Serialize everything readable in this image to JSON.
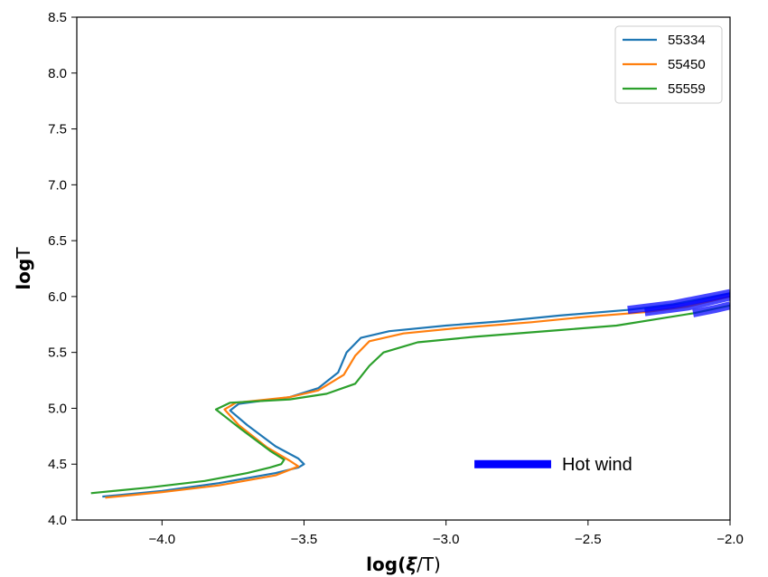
{
  "chart_data": {
    "type": "line",
    "xlabel_main": "log(",
    "xlabel_xi": "ξ",
    "xlabel_tail": "/T)",
    "ylabel_main": "log",
    "ylabel_tail": "T",
    "xlim": [
      -4.3,
      -2.0
    ],
    "ylim": [
      4.0,
      8.5
    ],
    "xticks": [
      -4.0,
      -3.5,
      -3.0,
      -2.5,
      -2.0
    ],
    "xtick_labels": [
      "−4.0",
      "−3.5",
      "−3.0",
      "−2.5",
      "−2.0"
    ],
    "yticks": [
      4.0,
      4.5,
      5.0,
      5.5,
      6.0,
      6.5,
      7.0,
      7.5,
      8.0,
      8.5
    ],
    "ytick_labels": [
      "4.0",
      "4.5",
      "5.0",
      "5.5",
      "6.0",
      "6.5",
      "7.0",
      "7.5",
      "8.0",
      "8.5"
    ],
    "grid": false,
    "legend_position": "top-right",
    "series": [
      {
        "name": "55334",
        "color": "#1f77b4",
        "points": [
          [
            -4.21,
            4.21
          ],
          [
            -4.0,
            4.26
          ],
          [
            -3.8,
            4.33
          ],
          [
            -3.6,
            4.42
          ],
          [
            -3.52,
            4.47
          ],
          [
            -3.5,
            4.5
          ],
          [
            -3.52,
            4.55
          ],
          [
            -3.6,
            4.66
          ],
          [
            -3.7,
            4.85
          ],
          [
            -3.76,
            4.98
          ],
          [
            -3.73,
            5.04
          ],
          [
            -3.55,
            5.1
          ],
          [
            -3.45,
            5.18
          ],
          [
            -3.38,
            5.32
          ],
          [
            -3.35,
            5.5
          ],
          [
            -3.3,
            5.63
          ],
          [
            -3.2,
            5.69
          ],
          [
            -3.0,
            5.74
          ],
          [
            -2.8,
            5.78
          ],
          [
            -2.6,
            5.83
          ],
          [
            -2.36,
            5.88
          ],
          [
            -2.2,
            5.93
          ],
          [
            -2.0,
            6.03
          ]
        ],
        "hot_segment": [
          [
            -2.36,
            5.88
          ],
          [
            -2.2,
            5.93
          ],
          [
            -2.0,
            6.03
          ]
        ]
      },
      {
        "name": "55450",
        "color": "#ff7f0e",
        "points": [
          [
            -4.2,
            4.2
          ],
          [
            -4.0,
            4.25
          ],
          [
            -3.8,
            4.31
          ],
          [
            -3.6,
            4.4
          ],
          [
            -3.54,
            4.46
          ],
          [
            -3.52,
            4.48
          ],
          [
            -3.55,
            4.53
          ],
          [
            -3.63,
            4.65
          ],
          [
            -3.73,
            4.85
          ],
          [
            -3.78,
            4.99
          ],
          [
            -3.74,
            5.05
          ],
          [
            -3.55,
            5.1
          ],
          [
            -3.45,
            5.16
          ],
          [
            -3.36,
            5.3
          ],
          [
            -3.32,
            5.47
          ],
          [
            -3.27,
            5.6
          ],
          [
            -3.15,
            5.67
          ],
          [
            -2.95,
            5.72
          ],
          [
            -2.7,
            5.77
          ],
          [
            -2.5,
            5.82
          ],
          [
            -2.3,
            5.86
          ],
          [
            -2.15,
            5.91
          ],
          [
            -2.0,
            6.0
          ]
        ],
        "hot_segment": [
          [
            -2.3,
            5.86
          ],
          [
            -2.15,
            5.91
          ],
          [
            -2.0,
            6.0
          ]
        ]
      },
      {
        "name": "55559",
        "color": "#2ca02c",
        "points": [
          [
            -4.25,
            4.24
          ],
          [
            -4.05,
            4.29
          ],
          [
            -3.85,
            4.35
          ],
          [
            -3.7,
            4.42
          ],
          [
            -3.62,
            4.47
          ],
          [
            -3.58,
            4.5
          ],
          [
            -3.57,
            4.54
          ],
          [
            -3.62,
            4.62
          ],
          [
            -3.72,
            4.81
          ],
          [
            -3.81,
            4.99
          ],
          [
            -3.76,
            5.05
          ],
          [
            -3.55,
            5.08
          ],
          [
            -3.42,
            5.13
          ],
          [
            -3.32,
            5.22
          ],
          [
            -3.27,
            5.38
          ],
          [
            -3.22,
            5.5
          ],
          [
            -3.1,
            5.59
          ],
          [
            -2.9,
            5.64
          ],
          [
            -2.6,
            5.7
          ],
          [
            -2.4,
            5.74
          ],
          [
            -2.13,
            5.85
          ],
          [
            -2.0,
            5.92
          ]
        ],
        "hot_segment": [
          [
            -2.13,
            5.85
          ],
          [
            -2.05,
            5.89
          ],
          [
            -2.0,
            5.92
          ]
        ]
      }
    ],
    "annotation": {
      "text": "Hot wind",
      "color": "#0000ff",
      "line_x": [
        -2.9,
        -2.63
      ],
      "y": 4.5
    }
  }
}
